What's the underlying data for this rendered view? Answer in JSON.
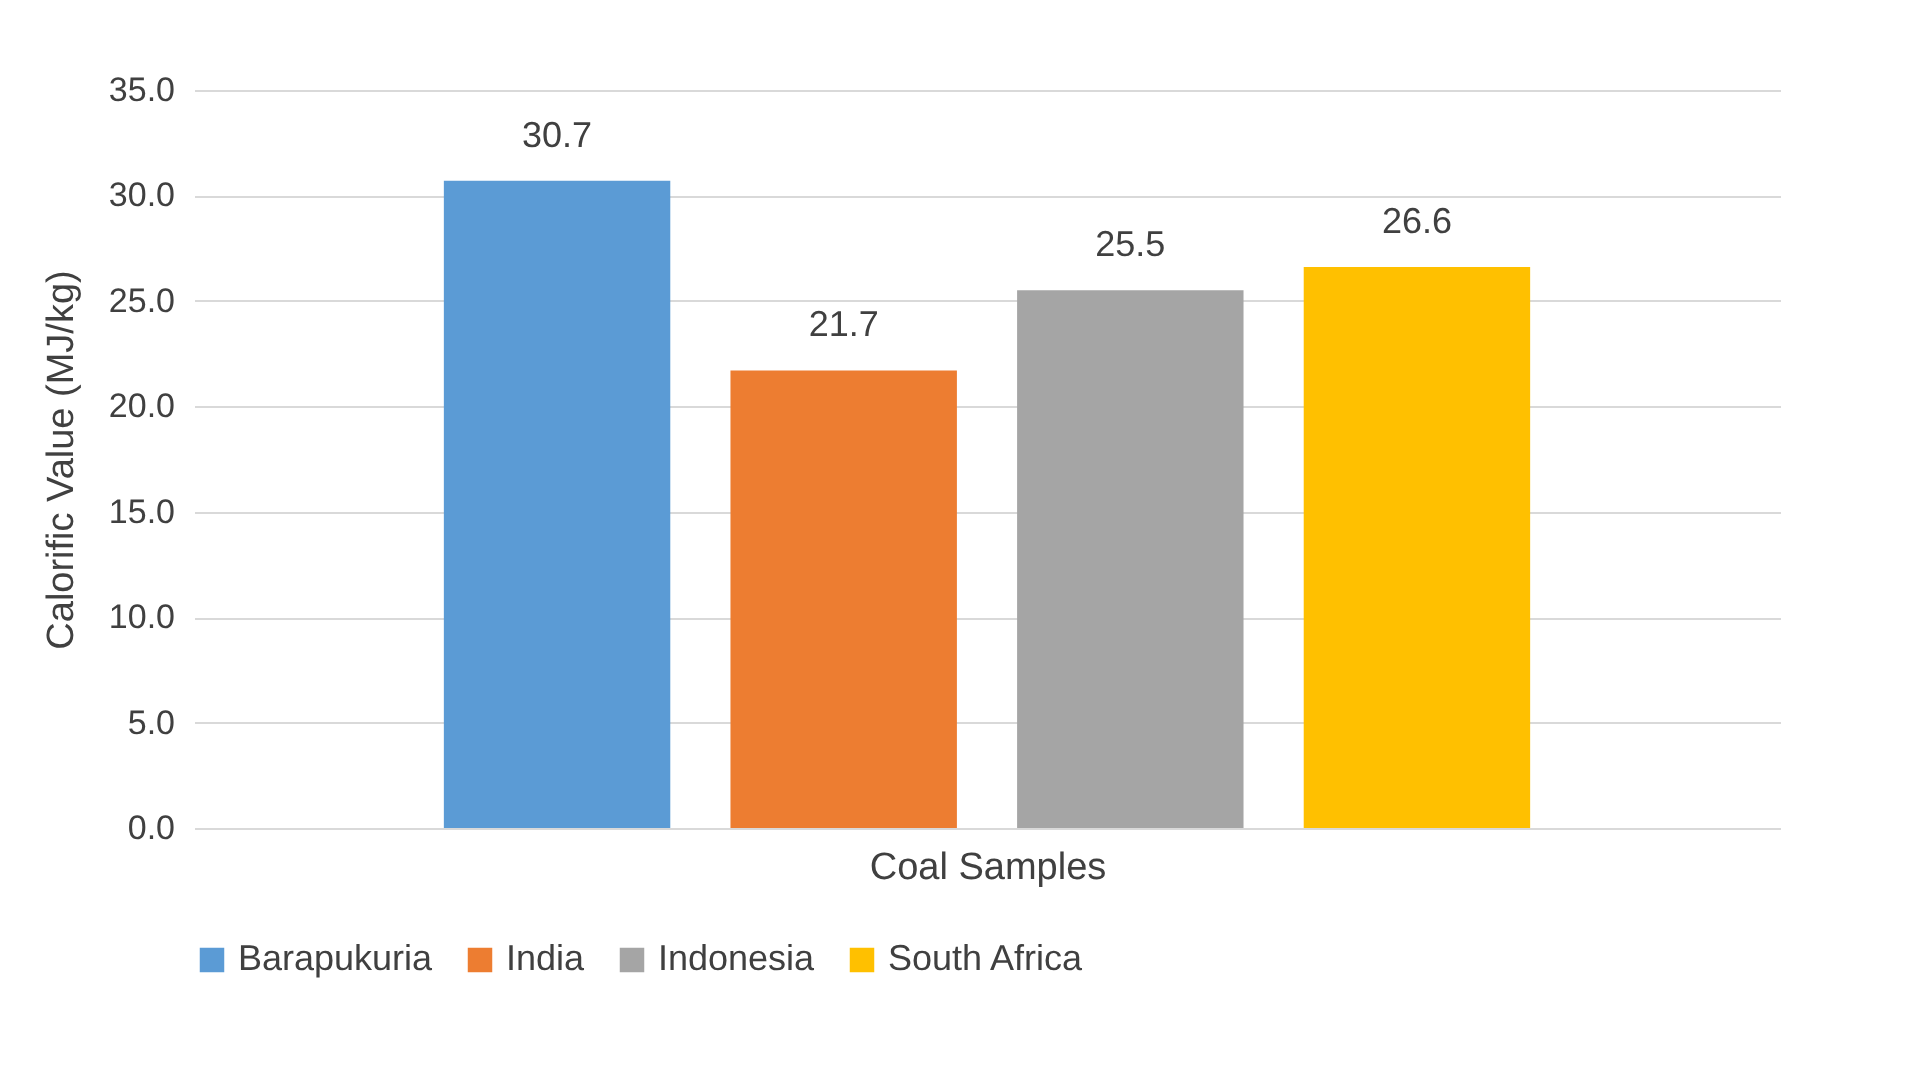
{
  "chart_data": {
    "type": "bar",
    "xlabel": "Coal Samples",
    "ylabel": "Calorific Value (MJ/kg)",
    "categories": [
      null
    ],
    "series": [
      {
        "name": "Barapukuria",
        "color": "#5b9bd5",
        "values": [
          30.7
        ]
      },
      {
        "name": "India",
        "color": "#ed7d31",
        "values": [
          21.7
        ]
      },
      {
        "name": "Indonesia",
        "color": "#a5a5a5",
        "values": [
          25.5
        ]
      },
      {
        "name": "South Africa",
        "color": "#ffc000",
        "values": [
          26.6
        ]
      }
    ],
    "ylim": [
      0,
      35
    ],
    "yticks": [
      {
        "value": 0,
        "label": "0.0"
      },
      {
        "value": 5,
        "label": "5.0"
      },
      {
        "value": 10,
        "label": "10.0"
      },
      {
        "value": 15,
        "label": "15.0"
      },
      {
        "value": 20,
        "label": "20.0"
      },
      {
        "value": 25,
        "label": "25.0"
      },
      {
        "value": 30,
        "label": "30.0"
      },
      {
        "value": 35,
        "label": "35.0"
      }
    ],
    "grid": "y",
    "legend": "bottom",
    "data_labels": true
  }
}
